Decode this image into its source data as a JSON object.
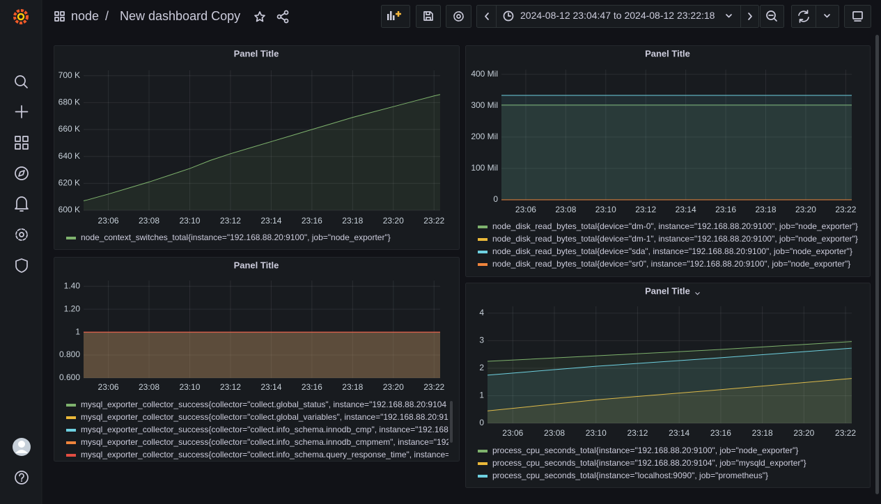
{
  "header": {
    "breadcrumb": "node",
    "separator": "/",
    "dashboard_title": "New dashboard Copy",
    "time_range": "2024-08-12 23:04:47 to 2024-08-12 23:22:18"
  },
  "panels": [
    {
      "title": "Panel Title",
      "chart_data": {
        "type": "line",
        "x": [
          "23:04:47",
          "23:05",
          "23:06",
          "23:07",
          "23:08",
          "23:09",
          "23:10",
          "23:11",
          "23:12",
          "23:13",
          "23:14",
          "23:15",
          "23:16",
          "23:17",
          "23:18",
          "23:19",
          "23:20",
          "23:21",
          "23:22",
          "23:22:18"
        ],
        "xlim": [
          "23:04:47",
          "23:22:18"
        ],
        "xticks": [
          "23:06",
          "23:08",
          "23:10",
          "23:12",
          "23:14",
          "23:16",
          "23:18",
          "23:20",
          "23:22"
        ],
        "ylim": [
          600000,
          704000
        ],
        "yticks": [
          {
            "value": 600000,
            "label": "600 K"
          },
          {
            "value": 620000,
            "label": "620 K"
          },
          {
            "value": 640000,
            "label": "640 K"
          },
          {
            "value": 660000,
            "label": "660 K"
          },
          {
            "value": 680000,
            "label": "680 K"
          },
          {
            "value": 700000,
            "label": "700 K"
          }
        ],
        "grid": true,
        "series": [
          {
            "name": "node_context_switches_total{instance=\"192.168.88.20:9100\", job=\"node_exporter\"}",
            "color": "#7EB26D",
            "values": [
              607000,
              607800,
              612000,
              616500,
              621000,
              626000,
              631000,
              637000,
              642000,
              646500,
              651000,
              655500,
              660000,
              664500,
              669000,
              673000,
              677000,
              681000,
              685000,
              686000
            ]
          }
        ]
      }
    },
    {
      "title": "Panel Title",
      "chart_data": {
        "type": "line",
        "x": [
          "23:04:47",
          "23:22:18"
        ],
        "xlim": [
          "23:04:47",
          "23:22:18"
        ],
        "xticks": [
          "23:06",
          "23:08",
          "23:10",
          "23:12",
          "23:14",
          "23:16",
          "23:18",
          "23:20",
          "23:22"
        ],
        "ylim": [
          0,
          415000000
        ],
        "yticks": [
          0,
          {
            "value": 100000000,
            "label": "100 Mil"
          },
          {
            "value": 200000000,
            "label": "200 Mil"
          },
          {
            "value": 300000000,
            "label": "300 Mil"
          },
          {
            "value": 400000000,
            "label": "400 Mil"
          }
        ],
        "grid": true,
        "series": [
          {
            "name": "node_disk_read_bytes_total{device=\"dm-0\", instance=\"192.168.88.20:9100\", job=\"node_exporter\"}",
            "color": "#7EB26D",
            "values": [
              302000000,
              302000000
            ]
          },
          {
            "name": "node_disk_read_bytes_total{device=\"dm-1\", instance=\"192.168.88.20:9100\", job=\"node_exporter\"}",
            "color": "#EAB839",
            "values": [
              0,
              0
            ]
          },
          {
            "name": "node_disk_read_bytes_total{device=\"sda\", instance=\"192.168.88.20:9100\", job=\"node_exporter\"}",
            "color": "#6ED0E0",
            "values": [
              333000000,
              333000000
            ]
          },
          {
            "name": "node_disk_read_bytes_total{device=\"sr0\", instance=\"192.168.88.20:9100\", job=\"node_exporter\"}",
            "color": "#EF843C",
            "values": [
              0,
              0
            ]
          }
        ]
      }
    },
    {
      "title": "Panel Title",
      "chart_data": {
        "type": "line",
        "x": [
          "23:04:47",
          "23:22:18"
        ],
        "xlim": [
          "23:04:47",
          "23:22:18"
        ],
        "xticks": [
          "23:06",
          "23:08",
          "23:10",
          "23:12",
          "23:14",
          "23:16",
          "23:18",
          "23:20",
          "23:22"
        ],
        "ylim": [
          0.6,
          1.45
        ],
        "yticks": [
          {
            "value": 0.6,
            "label": "0.600"
          },
          {
            "value": 0.8,
            "label": "0.800"
          },
          1,
          {
            "value": 1.2,
            "label": "1.20"
          },
          {
            "value": 1.4,
            "label": "1.40"
          }
        ],
        "grid": true,
        "series": [
          {
            "name": "mysql_exporter_collector_success{collector=\"collect.global_status\", instance=\"192.168.88.20:9104",
            "color": "#7EB26D",
            "values": [
              1,
              1
            ]
          },
          {
            "name": "mysql_exporter_collector_success{collector=\"collect.global_variables\", instance=\"192.168.88.20:91",
            "color": "#EAB839",
            "values": [
              1,
              1
            ]
          },
          {
            "name": "mysql_exporter_collector_success{collector=\"collect.info_schema.innodb_cmp\", instance=\"192.168",
            "color": "#6ED0E0",
            "values": [
              1,
              1
            ]
          },
          {
            "name": "mysql_exporter_collector_success{collector=\"collect.info_schema.innodb_cmpmem\", instance=\"192.",
            "color": "#EF843C",
            "values": [
              1,
              1
            ]
          },
          {
            "name": "mysql_exporter_collector_success{collector=\"collect.info_schema.query_response_time\", instance=\"",
            "color": "#E24D42",
            "values": [
              1,
              1
            ]
          }
        ]
      }
    },
    {
      "title": "Panel Title",
      "chart_data": {
        "type": "line",
        "x": [
          "23:04:47",
          "23:10",
          "23:16",
          "23:22:18"
        ],
        "xlim": [
          "23:04:47",
          "23:22:18"
        ],
        "xticks": [
          "23:06",
          "23:08",
          "23:10",
          "23:12",
          "23:14",
          "23:16",
          "23:18",
          "23:20",
          "23:22"
        ],
        "ylim": [
          0,
          4.25
        ],
        "yticks": [
          0,
          1,
          2,
          3,
          4
        ],
        "grid": true,
        "series": [
          {
            "name": "process_cpu_seconds_total{instance=\"192.168.88.20:9100\", job=\"node_exporter\"}",
            "color": "#7EB26D",
            "values": [
              2.25,
              2.45,
              2.68,
              2.97
            ]
          },
          {
            "name": "process_cpu_seconds_total{instance=\"192.168.88.20:9104\", job=\"mysqld_exporter\"}",
            "color": "#EAB839",
            "values": [
              0.45,
              0.85,
              1.22,
              1.63
            ]
          },
          {
            "name": "process_cpu_seconds_total{instance=\"localhost:9090\", job=\"prometheus\"}",
            "color": "#6ED0E0",
            "values": [
              1.75,
              2.07,
              2.38,
              2.73
            ]
          }
        ]
      }
    }
  ]
}
